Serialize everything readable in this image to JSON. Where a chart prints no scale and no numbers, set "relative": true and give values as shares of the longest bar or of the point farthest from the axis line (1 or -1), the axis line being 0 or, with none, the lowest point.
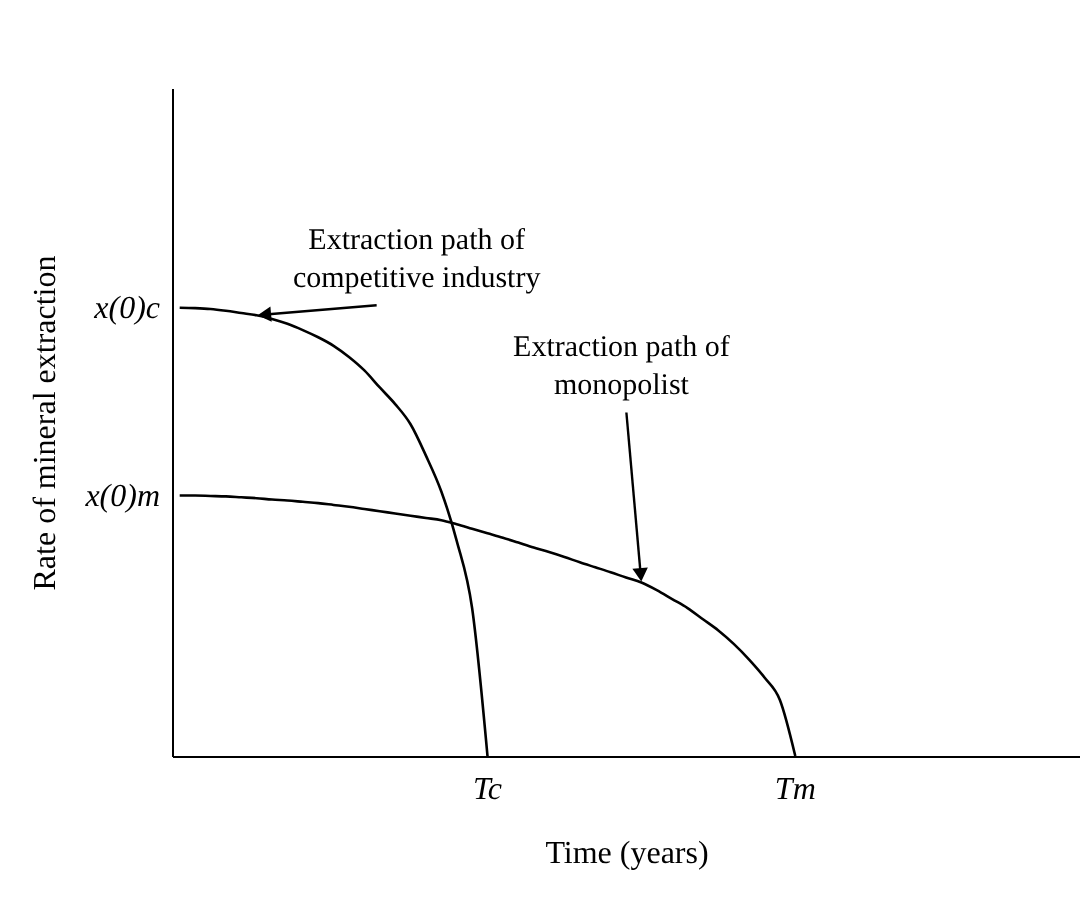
{
  "chart_data": {
    "type": "line",
    "relative": true,
    "xlabel": "Time (years)",
    "ylabel": "Rate of mineral extraction",
    "ylim": [
      0,
      1.49
    ],
    "grid": false,
    "marker": "none",
    "line_style": "solid",
    "categories": [
      null,
      null,
      null,
      null,
      null,
      null,
      null,
      null,
      null,
      null,
      null,
      null,
      null,
      null,
      null,
      null,
      null,
      null,
      null,
      null,
      "Tc",
      null,
      null,
      null,
      null,
      null,
      null,
      null,
      null,
      null,
      null,
      null,
      null,
      null,
      null,
      null,
      null,
      null,
      null,
      null,
      "Tm",
      null,
      null,
      null,
      null,
      null,
      null,
      null,
      null,
      null,
      null,
      null,
      null,
      null,
      null,
      null,
      null,
      null,
      null
    ],
    "series": [
      {
        "color": "#000000",
        "values": [
          1.0,
          0.999,
          0.997,
          0.993,
          0.988,
          0.983,
          0.975,
          0.964,
          0.95,
          0.934,
          0.915,
          0.89,
          0.86,
          0.822,
          0.785,
          0.74,
          0.67,
          0.59,
          0.48,
          0.33,
          0,
          null,
          null,
          null,
          null,
          null,
          null,
          null,
          null,
          null,
          null,
          null,
          null,
          null,
          null,
          null,
          null,
          null,
          null,
          null,
          null,
          null,
          null,
          null,
          null,
          null,
          null,
          null,
          null,
          null,
          null,
          null,
          null,
          null,
          null,
          null,
          null,
          null,
          null
        ]
      },
      {
        "color": "#000000",
        "values": [
          0.581,
          0.581,
          0.58,
          0.579,
          0.577,
          0.575,
          0.572,
          0.57,
          0.567,
          0.564,
          0.56,
          0.556,
          0.551,
          0.546,
          0.541,
          0.536,
          0.531,
          0.526,
          0.517,
          0.507,
          0.497,
          0.487,
          0.476,
          0.465,
          0.455,
          0.444,
          0.432,
          0.421,
          0.41,
          0.398,
          0.387,
          0.37,
          0.35,
          0.33,
          0.305,
          0.28,
          0.25,
          0.215,
          0.175,
          0.125,
          0,
          null,
          null,
          null,
          null,
          null,
          null,
          null,
          null,
          null,
          null,
          null,
          null,
          null,
          null,
          null,
          null,
          null,
          null
        ]
      }
    ],
    "annotations": [
      "Extraction path of competitive industry",
      "Extraction path of monopolist",
      "x(0)c",
      "x(0)m"
    ]
  }
}
